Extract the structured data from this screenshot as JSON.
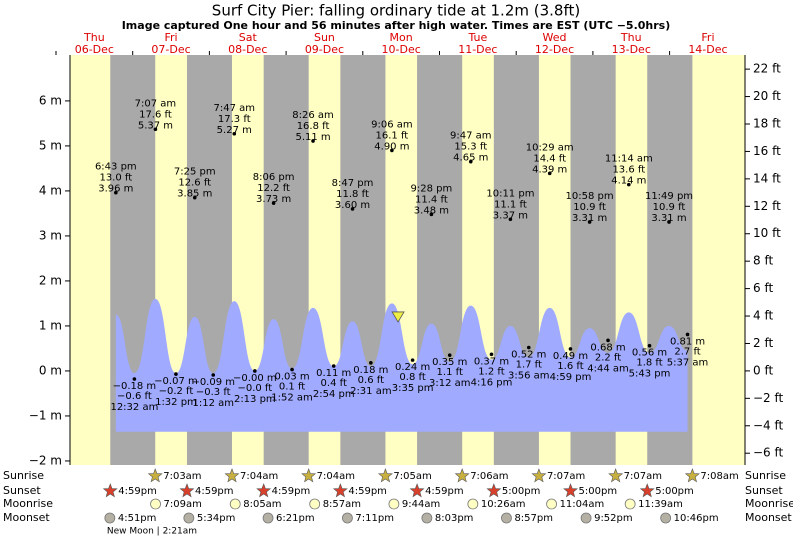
{
  "chart_data": {
    "type": "tide",
    "title": "Surf City Pier: falling  ordinary tide at 1.2m (3.8ft)",
    "subtitle": "Image captured One hour and 56 minutes after high water. Times are EST (UTC −5.0hrs)",
    "ylim": [
      -2.09,
      7.02
    ],
    "yticks": [
      {
        "value": -2,
        "label": "−2 m"
      },
      {
        "value": -1,
        "label": "−1 m"
      },
      {
        "value": 0,
        "label": "0 m"
      },
      {
        "value": 1,
        "label": "1 m"
      },
      {
        "value": 2,
        "label": "2 m"
      },
      {
        "value": 3,
        "label": "3 m"
      },
      {
        "value": 4,
        "label": "4 m"
      },
      {
        "value": 5,
        "label": "5 m"
      },
      {
        "value": 6,
        "label": "6 m"
      }
    ],
    "y2lim": [
      -6.86,
      23.03
    ],
    "y2ticks": [
      {
        "value": -6,
        "label": "−6 ft"
      },
      {
        "value": -4,
        "label": "−4 ft"
      },
      {
        "value": -2,
        "label": "−2 ft"
      },
      {
        "value": 0,
        "label": "0 ft"
      },
      {
        "value": 2,
        "label": "2 ft"
      },
      {
        "value": 4,
        "label": "4 ft"
      },
      {
        "value": 6,
        "label": "6 ft"
      },
      {
        "value": 8,
        "label": "8 ft"
      },
      {
        "value": 10,
        "label": "10 ft"
      },
      {
        "value": 12,
        "label": "12 ft"
      },
      {
        "value": 14,
        "label": "14 ft"
      },
      {
        "value": 16,
        "label": "16 ft"
      },
      {
        "value": 18,
        "label": "18 ft"
      },
      {
        "value": 20,
        "label": "20 ft"
      },
      {
        "value": 22,
        "label": "22 ft"
      }
    ],
    "rows": [
      "Sunrise",
      "Sunset",
      "Moonrise",
      "Moonset"
    ],
    "current": {
      "m": 1.2,
      "day": 4,
      "hour": 11.03
    },
    "colors": {
      "day": "#ffffc4",
      "night": "#a9a9a9",
      "water": "#a0aaff",
      "date": "#dd0000"
    },
    "moon_phase": "New Moon | 2:21am",
    "days": [
      {
        "weekday": "Thu",
        "date": "06-Dec",
        "sunrise": null,
        "sunset": "4:59pm",
        "moonrise": null,
        "moonset": "4:51pm",
        "tides": [
          {
            "time": "6:43 pm",
            "ft": 13.0,
            "ft_label": "13.0 ft",
            "m": 3.96,
            "m_label": "3.96 m",
            "curve_m": 1.25
          }
        ]
      },
      {
        "weekday": "Fri",
        "date": "07-Dec",
        "sunrise": "7:03am",
        "sunset": "4:59pm",
        "moonrise": "7:09am",
        "moonset": "5:34pm",
        "tides": [
          {
            "time": "12:32 am",
            "ft": -0.6,
            "ft_label": "−0.6 ft",
            "m": -0.18,
            "m_label": "−0.18 m",
            "curve_m": -0.05
          },
          {
            "time": "7:07 am",
            "ft": 17.6,
            "ft_label": "17.6 ft",
            "m": 5.37,
            "m_label": "5.37 m",
            "curve_m": 1.6
          },
          {
            "time": "1:32 pm",
            "ft": -0.2,
            "ft_label": "−0.2 ft",
            "m": -0.07,
            "m_label": "−0.07 m",
            "curve_m": -0.05
          },
          {
            "time": "7:25 pm",
            "ft": 12.6,
            "ft_label": "12.6 ft",
            "m": 3.85,
            "m_label": "3.85 m",
            "curve_m": 1.2
          }
        ]
      },
      {
        "weekday": "Sat",
        "date": "08-Dec",
        "sunrise": "7:04am",
        "sunset": "4:59pm",
        "moonrise": "8:05am",
        "moonset": "6:21pm",
        "tides": [
          {
            "time": "1:12 am",
            "ft": -0.3,
            "ft_label": "−0.3 ft",
            "m": -0.09,
            "m_label": "−0.09 m",
            "curve_m": -0.05
          },
          {
            "time": "7:47 am",
            "ft": 17.3,
            "ft_label": "17.3 ft",
            "m": 5.27,
            "m_label": "5.27 m",
            "curve_m": 1.55
          },
          {
            "time": "2:13 pm",
            "ft": 0,
            "ft_label": "−0.0 ft",
            "m": 0,
            "m_label": "−0.00 m",
            "curve_m": 0
          },
          {
            "time": "8:06 pm",
            "ft": 12.2,
            "ft_label": "12.2 ft",
            "m": 3.73,
            "m_label": "3.73 m",
            "curve_m": 1.15
          }
        ]
      },
      {
        "weekday": "Sun",
        "date": "09-Dec",
        "sunrise": "7:04am",
        "sunset": "4:59pm",
        "moonrise": "8:57am",
        "moonset": "7:11pm",
        "tides": [
          {
            "time": "1:52 am",
            "ft": 0.1,
            "ft_label": "0.1 ft",
            "m": 0.03,
            "m_label": "0.03 m",
            "curve_m": 0.05
          },
          {
            "time": "8:26 am",
            "ft": 16.8,
            "ft_label": "16.8 ft",
            "m": 5.11,
            "m_label": "5.11 m",
            "curve_m": 1.4
          },
          {
            "time": "2:54 pm",
            "ft": 0.4,
            "ft_label": "0.4 ft",
            "m": 0.11,
            "m_label": "0.11 m",
            "curve_m": 0.1
          },
          {
            "time": "8:47 pm",
            "ft": 11.8,
            "ft_label": "11.8 ft",
            "m": 3.6,
            "m_label": "3.60 m",
            "curve_m": 1.1
          }
        ]
      },
      {
        "weekday": "Mon",
        "date": "10-Dec",
        "sunrise": "7:05am",
        "sunset": "4:59pm",
        "moonrise": "9:44am",
        "moonset": "8:03pm",
        "tides": [
          {
            "time": "2:31 am",
            "ft": 0.6,
            "ft_label": "0.6 ft",
            "m": 0.18,
            "m_label": "0.18 m",
            "curve_m": 0.1
          },
          {
            "time": "9:06 am",
            "ft": 16.1,
            "ft_label": "16.1 ft",
            "m": 4.9,
            "m_label": "4.90 m",
            "curve_m": 1.5
          },
          {
            "time": "3:35 pm",
            "ft": 0.8,
            "ft_label": "0.8 ft",
            "m": 0.24,
            "m_label": "0.24 m",
            "curve_m": 0.15
          },
          {
            "time": "9:28 pm",
            "ft": 11.4,
            "ft_label": "11.4 ft",
            "m": 3.48,
            "m_label": "3.48 m",
            "curve_m": 1.05
          }
        ]
      },
      {
        "weekday": "Tue",
        "date": "11-Dec",
        "sunrise": "7:06am",
        "sunset": "5:00pm",
        "moonrise": "10:26am",
        "moonset": "8:57pm",
        "tides": [
          {
            "time": "3:12 am",
            "ft": 1.1,
            "ft_label": "1.1 ft",
            "m": 0.35,
            "m_label": "0.35 m",
            "curve_m": 0.2
          },
          {
            "time": "9:47 am",
            "ft": 15.3,
            "ft_label": "15.3 ft",
            "m": 4.65,
            "m_label": "4.65 m",
            "curve_m": 1.45
          },
          {
            "time": "4:16 pm",
            "ft": 1.2,
            "ft_label": "1.2 ft",
            "m": 0.37,
            "m_label": "0.37 m",
            "curve_m": 0.25
          },
          {
            "time": "10:11 pm",
            "ft": 11.1,
            "ft_label": "11.1 ft",
            "m": 3.37,
            "m_label": "3.37 m",
            "curve_m": 1.0
          }
        ]
      },
      {
        "weekday": "Wed",
        "date": "12-Dec",
        "sunrise": "7:07am",
        "sunset": "5:00pm",
        "moonrise": "11:04am",
        "moonset": "9:52pm",
        "tides": [
          {
            "time": "3:56 am",
            "ft": 1.7,
            "ft_label": "1.7 ft",
            "m": 0.52,
            "m_label": "0.52 m",
            "curve_m": 0.3
          },
          {
            "time": "10:29 am",
            "ft": 14.4,
            "ft_label": "14.4 ft",
            "m": 4.39,
            "m_label": "4.39 m",
            "curve_m": 1.4
          },
          {
            "time": "4:59 pm",
            "ft": 1.6,
            "ft_label": "1.6 ft",
            "m": 0.49,
            "m_label": "0.49 m",
            "curve_m": 0.3
          },
          {
            "time": "10:58 pm",
            "ft": 10.9,
            "ft_label": "10.9 ft",
            "m": 3.31,
            "m_label": "3.31 m",
            "curve_m": 0.95
          }
        ]
      },
      {
        "weekday": "Thu",
        "date": "13-Dec",
        "sunrise": "7:07am",
        "sunset": "5:00pm",
        "moonrise": "11:39am",
        "moonset": "10:46pm",
        "tides": [
          {
            "time": "4:44 am",
            "ft": 2.2,
            "ft_label": "2.2 ft",
            "m": 0.68,
            "m_label": "0.68 m",
            "curve_m": 0.4
          },
          {
            "time": "11:14 am",
            "ft": 13.6,
            "ft_label": "13.6 ft",
            "m": 4.14,
            "m_label": "4.14 m",
            "curve_m": 1.3
          },
          {
            "time": "5:43 pm",
            "ft": 1.8,
            "ft_label": "1.8 ft",
            "m": 0.56,
            "m_label": "0.56 m",
            "curve_m": 0.4
          },
          {
            "time": "11:49 pm",
            "ft": 10.9,
            "ft_label": "10.9 ft",
            "m": 3.31,
            "m_label": "3.31 m",
            "curve_m": 1.0
          }
        ]
      },
      {
        "weekday": "Fri",
        "date": "14-Dec",
        "sunrise": "7:08am",
        "sunset": null,
        "moonrise": null,
        "moonset": null,
        "tides": [
          {
            "time": "5:37 am",
            "ft": 2.7,
            "ft_label": "2.7 ft",
            "m": 0.81,
            "m_label": "0.81 m",
            "curve_m": 0.45
          }
        ]
      }
    ]
  }
}
